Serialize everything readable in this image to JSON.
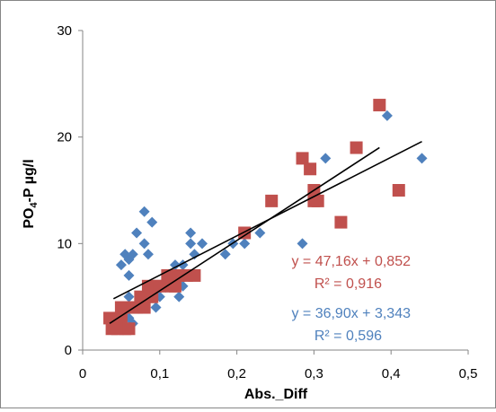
{
  "chart_data": {
    "type": "scatter",
    "title": "",
    "xlabel": "Abs._Diff",
    "ylabel_main": "PO",
    "ylabel_sub": "4",
    "ylabel_tail": "-P µg/l",
    "xlim": [
      0,
      0.5
    ],
    "ylim": [
      0,
      30
    ],
    "x_tick_labels": [
      "0",
      "0,1",
      "0,2",
      "0,3",
      "0,4",
      "0,5"
    ],
    "y_tick_labels": [
      "0",
      "10",
      "20",
      "30"
    ],
    "x_ticks": [
      0,
      0.1,
      0.2,
      0.3,
      0.4,
      0.5
    ],
    "y_ticks": [
      0,
      10,
      20,
      30
    ],
    "grid": false,
    "series": [
      {
        "marker": "diamond",
        "color": "#4f81bd",
        "points": [
          [
            0.04,
            2
          ],
          [
            0.05,
            3
          ],
          [
            0.055,
            4
          ],
          [
            0.06,
            5
          ],
          [
            0.055,
            9
          ],
          [
            0.05,
            8
          ],
          [
            0.06,
            8.5
          ],
          [
            0.065,
            9
          ],
          [
            0.06,
            7
          ],
          [
            0.07,
            11
          ],
          [
            0.08,
            10
          ],
          [
            0.085,
            9
          ],
          [
            0.08,
            13
          ],
          [
            0.09,
            12
          ],
          [
            0.075,
            4
          ],
          [
            0.08,
            5
          ],
          [
            0.09,
            6
          ],
          [
            0.095,
            4
          ],
          [
            0.1,
            5
          ],
          [
            0.105,
            6
          ],
          [
            0.11,
            7
          ],
          [
            0.12,
            8
          ],
          [
            0.125,
            5
          ],
          [
            0.13,
            6
          ],
          [
            0.13,
            8
          ],
          [
            0.14,
            7
          ],
          [
            0.14,
            10
          ],
          [
            0.145,
            9
          ],
          [
            0.14,
            11
          ],
          [
            0.155,
            10
          ],
          [
            0.185,
            9
          ],
          [
            0.195,
            10
          ],
          [
            0.21,
            10
          ],
          [
            0.23,
            11
          ],
          [
            0.285,
            10
          ],
          [
            0.315,
            18
          ],
          [
            0.395,
            22
          ],
          [
            0.44,
            18
          ],
          [
            0.06,
            3
          ],
          [
            0.065,
            2.5
          ]
        ]
      },
      {
        "marker": "square",
        "color": "#c0504d",
        "points": [
          [
            0.035,
            3
          ],
          [
            0.038,
            2
          ],
          [
            0.045,
            2
          ],
          [
            0.05,
            3
          ],
          [
            0.055,
            2
          ],
          [
            0.06,
            2
          ],
          [
            0.05,
            4
          ],
          [
            0.065,
            4
          ],
          [
            0.07,
            4
          ],
          [
            0.075,
            5
          ],
          [
            0.08,
            4
          ],
          [
            0.085,
            5
          ],
          [
            0.085,
            6
          ],
          [
            0.09,
            5
          ],
          [
            0.095,
            6
          ],
          [
            0.1,
            6
          ],
          [
            0.11,
            7
          ],
          [
            0.115,
            6
          ],
          [
            0.12,
            6
          ],
          [
            0.125,
            7
          ],
          [
            0.135,
            7
          ],
          [
            0.145,
            7
          ],
          [
            0.21,
            11
          ],
          [
            0.245,
            14
          ],
          [
            0.285,
            18
          ],
          [
            0.295,
            17
          ],
          [
            0.3,
            15
          ],
          [
            0.3,
            14
          ],
          [
            0.305,
            14
          ],
          [
            0.335,
            12
          ],
          [
            0.355,
            19
          ],
          [
            0.385,
            23
          ],
          [
            0.41,
            15
          ]
        ]
      }
    ],
    "trendlines": [
      {
        "slope": 47.16,
        "intercept": 0.852,
        "x_range": [
          0.035,
          0.385
        ]
      },
      {
        "slope": 36.9,
        "intercept": 3.343,
        "x_range": [
          0.04,
          0.44
        ]
      }
    ],
    "annotations": [
      {
        "text": "y = 47,16x + 0,852",
        "color": "#c0504d"
      },
      {
        "text": "R² = 0,916",
        "color": "#c0504d"
      },
      {
        "text": "y = 36,90x + 3,343",
        "color": "#4f81bd"
      },
      {
        "text": "R² = 0,596",
        "color": "#4f81bd"
      }
    ]
  }
}
